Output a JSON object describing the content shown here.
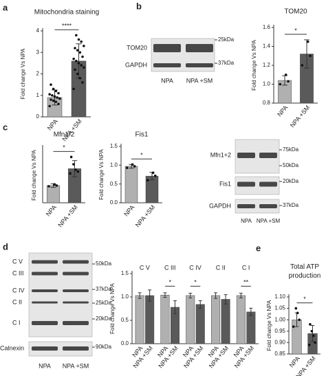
{
  "panel_labels": [
    "a",
    "b",
    "c",
    "d",
    "e"
  ],
  "chart_data": [
    {
      "type": "bar",
      "title": "Mitochondria staining",
      "ylabel": "Fold change Vs NPA",
      "categories": [
        "NPA",
        "NPA +SM"
      ],
      "values": [
        0.9,
        2.6
      ],
      "errors": [
        0.35,
        0.8
      ],
      "points": [
        [
          0.5,
          0.6,
          0.7,
          0.75,
          0.8,
          0.85,
          0.9,
          0.95,
          1.0,
          1.05,
          1.1,
          1.2,
          1.3,
          1.5
        ],
        [
          1.3,
          1.6,
          1.8,
          2.0,
          2.2,
          2.3,
          2.4,
          2.5,
          2.6,
          2.7,
          2.8,
          3.0,
          3.1,
          3.2,
          3.3,
          3.5,
          3.6,
          3.8
        ]
      ],
      "colors": [
        "#b0b0b0",
        "#5a5a5a"
      ],
      "ylim": [
        0,
        4
      ],
      "yticks": [
        0,
        1,
        2,
        3,
        4
      ],
      "significance": "****"
    },
    {
      "type": "bar",
      "title": "TOM20",
      "ylabel": "Fold change Vs NPA",
      "categories": [
        "NPA",
        "NPA +SM"
      ],
      "values": [
        1.04,
        1.32
      ],
      "errors": [
        0.05,
        0.15
      ],
      "points": [
        [
          1.0,
          1.03,
          1.1
        ],
        [
          1.2,
          1.3,
          1.45
        ]
      ],
      "colors": [
        "#b0b0b0",
        "#5a5a5a"
      ],
      "ylim": [
        0.8,
        1.6
      ],
      "yticks": [
        0.8,
        {
          "value": 1,
          "label": "1.0"
        },
        1.2,
        1.4,
        1.6
      ],
      "significance": "*"
    },
    {
      "type": "bar",
      "title": "Mfn1/2",
      "ylabel": "Fold change Vs NPA",
      "categories": [
        "NPA",
        "NPA +SM"
      ],
      "values": [
        0.97,
        1.43
      ],
      "errors": [
        0.05,
        0.22
      ],
      "points": [
        [
          0.95,
          0.97,
          1.0
        ],
        [
          1.3,
          1.35,
          1.4,
          1.55,
          1.75
        ]
      ],
      "colors": [
        "#b0b0b0",
        "#5a5a5a"
      ],
      "ylim": [
        0.5,
        2.0
      ],
      "yticks": [],
      "significance": "*"
    },
    {
      "type": "bar",
      "title": "Fis1",
      "ylabel": "Fold change Vs NPA",
      "categories": [
        "NPA",
        "NPA +SM"
      ],
      "values": [
        0.97,
        0.71
      ],
      "errors": [
        0.05,
        0.1
      ],
      "points": [
        [
          0.93,
          0.97,
          1.02
        ],
        [
          0.6,
          0.72,
          0.8
        ]
      ],
      "colors": [
        "#b0b0b0",
        "#5a5a5a"
      ],
      "ylim": [
        0,
        1.5
      ],
      "yticks": [
        {
          "value": 0,
          "label": "0.0"
        },
        0.5,
        {
          "value": 1,
          "label": "1.0"
        },
        1.5
      ],
      "significance": "*"
    },
    {
      "type": "grouped_bar",
      "ylabel": "Fold change Vs NPA",
      "categories": [
        "C V",
        "C III",
        "C IV",
        "C II",
        "C I"
      ],
      "series": [
        {
          "name": "NPA",
          "color": "#b0b0b0",
          "values": [
            1.03,
            1.04,
            1.03,
            1.03,
            1.03
          ],
          "errors": [
            0.06,
            0.05,
            0.05,
            0.06,
            0.05
          ]
        },
        {
          "name": "NPA +SM",
          "color": "#5a5a5a",
          "values": [
            1.03,
            0.78,
            0.84,
            0.95,
            0.68
          ],
          "errors": [
            0.12,
            0.14,
            0.08,
            0.1,
            0.08
          ]
        }
      ],
      "ylim": [
        0,
        1.5
      ],
      "yticks": [
        {
          "value": 0,
          "label": "0.0"
        },
        0.5,
        {
          "value": 1,
          "label": "1.0"
        },
        1.5
      ],
      "significance": [
        null,
        "*",
        "*",
        null,
        "**"
      ]
    },
    {
      "type": "bar",
      "title": "Total ATP production",
      "ylabel": "Fold change Vs NPA",
      "categories": [
        "NPA",
        "NPA +SM"
      ],
      "values": [
        1.0,
        0.94
      ],
      "errors": [
        0.03,
        0.035
      ],
      "points": [
        [
          0.97,
          1.0,
          1.03,
          1.05
        ],
        [
          0.89,
          0.9,
          0.93,
          0.95,
          0.98
        ]
      ],
      "colors": [
        "#b0b0b0",
        "#5a5a5a"
      ],
      "ylim": [
        0.85,
        1.1
      ],
      "yticks": [
        0.85,
        {
          "value": 0.9,
          "label": "0.90"
        },
        0.95,
        {
          "value": 1,
          "label": "1.00"
        },
        1.05,
        {
          "value": 1.1,
          "label": "1.10"
        }
      ],
      "significance": "*"
    }
  ],
  "blots": [
    {
      "rows": [
        "TOM20",
        "GAPDH"
      ],
      "markers": [
        "25kDa",
        "37kDa"
      ],
      "lanes": [
        "NPA",
        "NPA +SM"
      ]
    },
    {
      "rows": [
        "Mfn1+2",
        "Fis1",
        "GAPDH"
      ],
      "markers": [
        "75kDa",
        "50kDa",
        "20kDa",
        "37kDa"
      ],
      "lanes": [
        "NPA",
        "NPA +SM"
      ]
    },
    {
      "rows": [
        "C V",
        "C III",
        "C IV",
        "C II",
        "C I",
        "Calnexin"
      ],
      "markers": [
        "50kDa",
        "37kDa",
        "25kDa",
        "20kDa",
        "90kDa"
      ],
      "lanes": [
        "NPA",
        "NPA +SM"
      ]
    }
  ]
}
